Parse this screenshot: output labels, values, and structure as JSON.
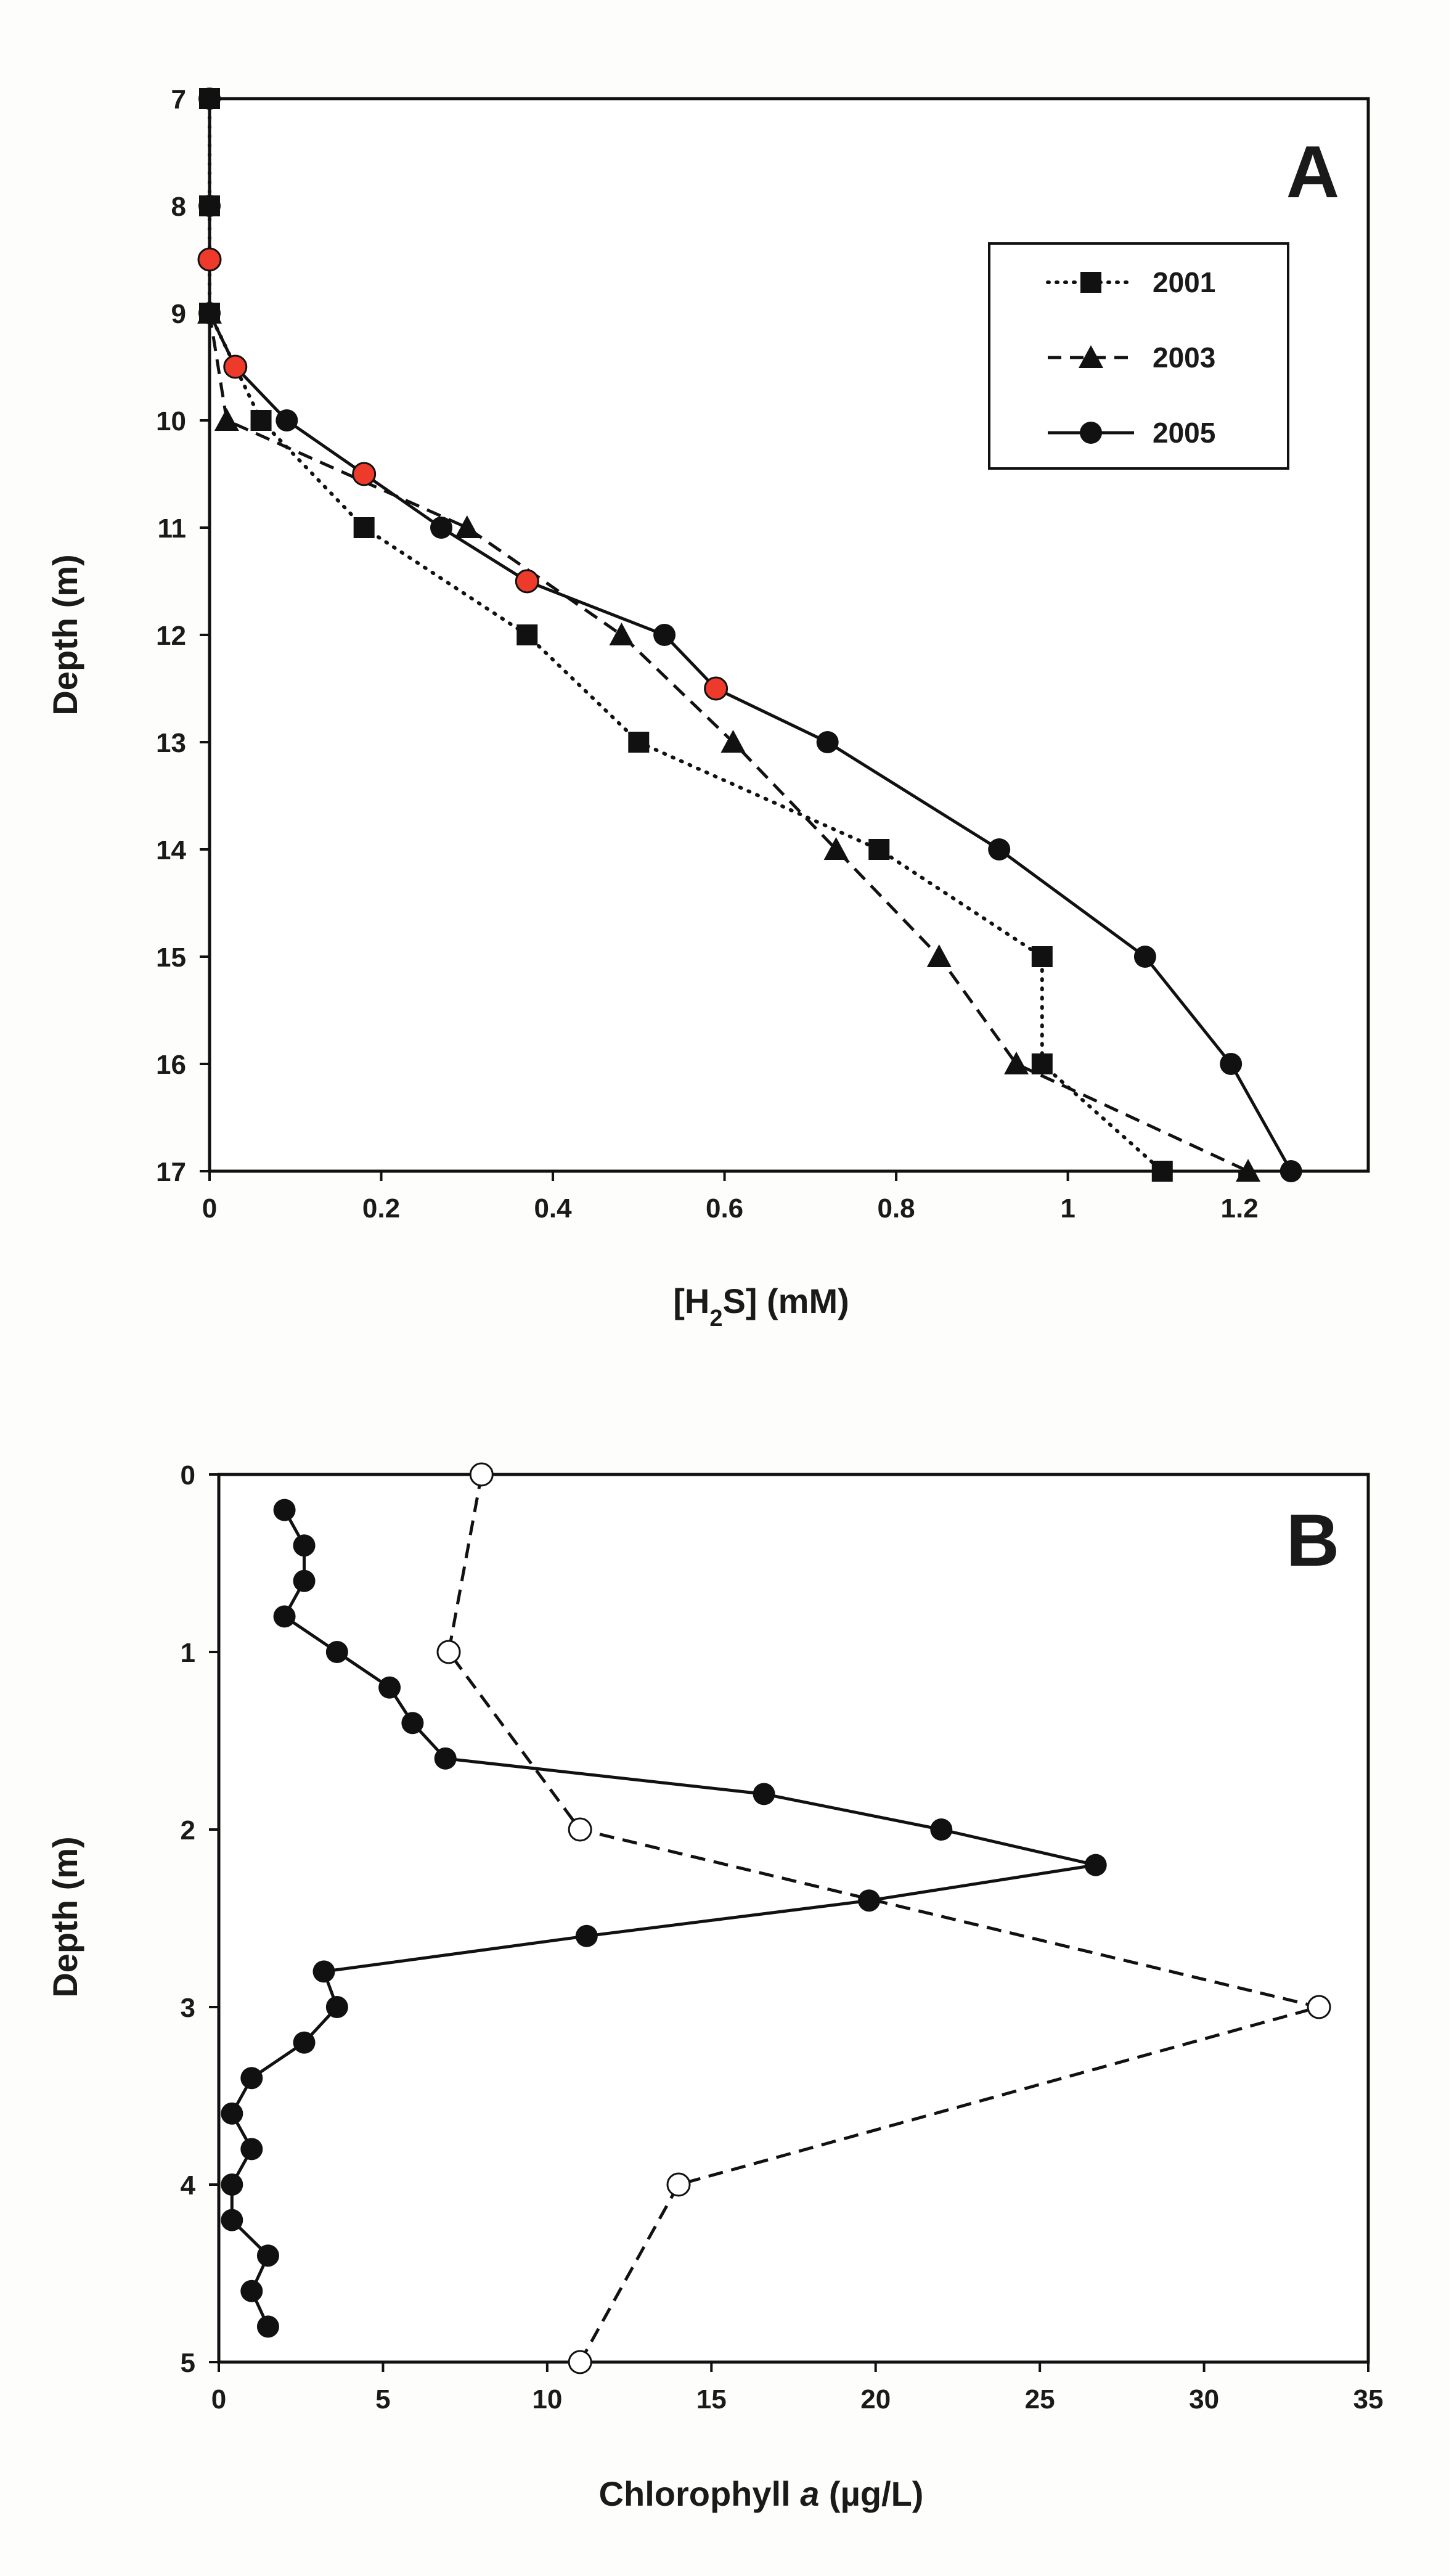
{
  "chart_data": [
    {
      "type": "line",
      "panel_label": "A",
      "xlabel_main": "[H",
      "xlabel_sub": "2",
      "xlabel_tail": "S] (mM)",
      "ylabel": "Depth (m)",
      "xlim": [
        0,
        1.35
      ],
      "ylim": [
        7,
        17
      ],
      "y_inverted": true,
      "x_ticks": [
        0,
        0.2,
        0.4,
        0.6,
        0.8,
        1,
        1.2
      ],
      "x_tick_labels": [
        "0",
        "0.2",
        "0.4",
        "0.6",
        "0.8",
        "1",
        "1.2"
      ],
      "y_ticks": [
        7,
        8,
        9,
        10,
        11,
        12,
        13,
        14,
        15,
        16,
        17
      ],
      "y_tick_labels": [
        "7",
        "8",
        "9",
        "10",
        "11",
        "12",
        "13",
        "14",
        "15",
        "16",
        "17"
      ],
      "legend_position": "top-right",
      "series": [
        {
          "name": "2001",
          "line_style": "dotted",
          "marker": "square",
          "color": "#111111",
          "points": [
            [
              0,
              7
            ],
            [
              0,
              8
            ],
            [
              0,
              9
            ],
            [
              0.06,
              10
            ],
            [
              0.18,
              11
            ],
            [
              0.37,
              12
            ],
            [
              0.5,
              13
            ],
            [
              0.78,
              14
            ],
            [
              0.97,
              15
            ],
            [
              0.97,
              16
            ],
            [
              1.11,
              17
            ]
          ]
        },
        {
          "name": "2003",
          "line_style": "dashed",
          "marker": "triangle",
          "color": "#111111",
          "points": [
            [
              0,
              9
            ],
            [
              0.02,
              10
            ],
            [
              0.3,
              11
            ],
            [
              0.48,
              12
            ],
            [
              0.61,
              13
            ],
            [
              0.73,
              14
            ],
            [
              0.85,
              15
            ],
            [
              0.94,
              16
            ],
            [
              1.21,
              17
            ]
          ]
        },
        {
          "name": "2005",
          "line_style": "solid",
          "marker": "circle",
          "color": "#111111",
          "highlight_color": "#ee3a2a",
          "points": [
            [
              0,
              7
            ],
            [
              0,
              8
            ],
            [
              0,
              8.5
            ],
            [
              0,
              9
            ],
            [
              0.03,
              9.5
            ],
            [
              0.09,
              10
            ],
            [
              0.18,
              10.5
            ],
            [
              0.27,
              11
            ],
            [
              0.37,
              11.5
            ],
            [
              0.53,
              12
            ],
            [
              0.59,
              12.5
            ],
            [
              0.72,
              13
            ],
            [
              0.92,
              14
            ],
            [
              1.09,
              15
            ],
            [
              1.19,
              16
            ],
            [
              1.26,
              17
            ]
          ],
          "highlighted_depths": [
            8.5,
            9.5,
            10.5,
            11.5,
            12.5
          ]
        }
      ]
    },
    {
      "type": "line",
      "panel_label": "B",
      "xlabel_main": "Chlorophyll ",
      "xlabel_italic": "a",
      "xlabel_tail": " (µg/L)",
      "ylabel": "Depth (m)",
      "xlim": [
        0,
        35
      ],
      "ylim": [
        0,
        5
      ],
      "y_inverted": true,
      "x_ticks": [
        0,
        5,
        10,
        15,
        20,
        25,
        30,
        35
      ],
      "x_tick_labels": [
        "0",
        "5",
        "10",
        "15",
        "20",
        "25",
        "30",
        "35"
      ],
      "y_ticks": [
        0,
        1,
        2,
        3,
        4,
        5
      ],
      "y_tick_labels": [
        "0",
        "1",
        "2",
        "3",
        "4",
        "5"
      ],
      "series": [
        {
          "name": "filled-circles",
          "line_style": "solid",
          "marker": "circle-filled",
          "color": "#111111",
          "points": [
            [
              2.0,
              0.2
            ],
            [
              2.6,
              0.4
            ],
            [
              2.6,
              0.6
            ],
            [
              2.0,
              0.8
            ],
            [
              3.6,
              1.0
            ],
            [
              5.2,
              1.2
            ],
            [
              5.9,
              1.4
            ],
            [
              6.9,
              1.6
            ],
            [
              16.6,
              1.8
            ],
            [
              22.0,
              2.0
            ],
            [
              26.7,
              2.2
            ],
            [
              19.8,
              2.4
            ],
            [
              11.2,
              2.6
            ],
            [
              3.2,
              2.8
            ],
            [
              3.6,
              3.0
            ],
            [
              2.6,
              3.2
            ],
            [
              1.0,
              3.4
            ],
            [
              0.4,
              3.6
            ],
            [
              1.0,
              3.8
            ],
            [
              0.4,
              4.0
            ],
            [
              0.4,
              4.2
            ],
            [
              1.5,
              4.4
            ],
            [
              1.0,
              4.6
            ],
            [
              1.5,
              4.8
            ]
          ]
        },
        {
          "name": "open-circles",
          "line_style": "dashed",
          "marker": "circle-open",
          "color": "#111111",
          "points": [
            [
              8.0,
              0
            ],
            [
              7.0,
              1
            ],
            [
              11.0,
              2
            ],
            [
              33.5,
              3
            ],
            [
              14.0,
              4
            ],
            [
              11.0,
              5
            ]
          ]
        }
      ]
    }
  ]
}
